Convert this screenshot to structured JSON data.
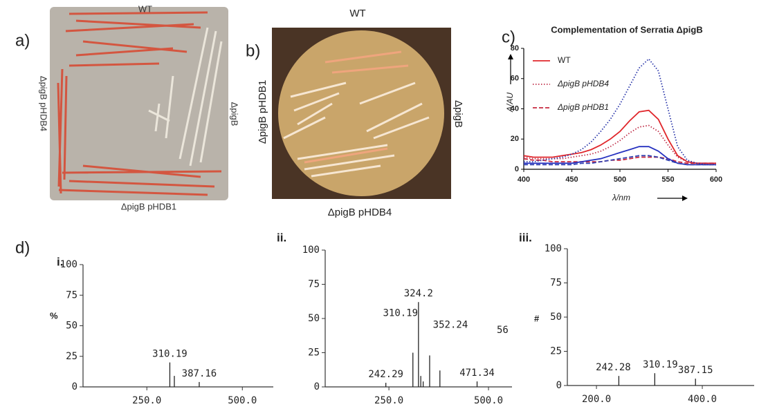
{
  "panels": {
    "a": {
      "label": "a)",
      "top": "WT",
      "right": "ΔpigB",
      "left": "ΔpigB pHDB4",
      "bottom": "ΔpigB pHDB1"
    },
    "b": {
      "label": "b)",
      "top": "WT",
      "right": "ΔpigB",
      "left": "ΔpigB pHDB1",
      "bottom": "ΔpigB pHDB4"
    },
    "c": {
      "label": "c)"
    },
    "d": {
      "label": "d)"
    }
  },
  "chart_data": [
    {
      "type": "line",
      "title": "Complementation of Serratia ΔpigB",
      "x_label": "λ/nm",
      "y_label": "A/AU",
      "x": [
        400,
        410,
        420,
        430,
        440,
        450,
        460,
        470,
        480,
        490,
        500,
        510,
        520,
        530,
        540,
        550,
        560,
        570,
        580,
        590,
        600
      ],
      "xlim": [
        400,
        600
      ],
      "xticks": [
        400,
        450,
        500,
        550,
        600
      ],
      "ylim": [
        0,
        80
      ],
      "yticks": [
        0,
        20,
        40,
        60,
        80
      ],
      "legend": "upper left",
      "series": [
        {
          "name": "WT",
          "color": "#e0262b",
          "dash": "solid",
          "values": [
            9,
            8,
            8,
            8,
            9,
            10,
            11,
            13,
            16,
            20,
            25,
            32,
            38,
            39,
            33,
            20,
            9,
            5,
            4,
            4,
            4
          ]
        },
        {
          "name": "ΔpigB pHDB4",
          "color": "#c0304a",
          "dash": "dotted",
          "values": [
            8,
            7,
            7,
            7,
            7,
            8,
            9,
            10,
            12,
            15,
            19,
            24,
            28,
            29,
            25,
            16,
            8,
            5,
            4,
            4,
            3
          ]
        },
        {
          "name": "ΔpigB pHDB1",
          "color": "#c8283e",
          "dash": "dashed",
          "values": [
            7,
            6,
            6,
            5,
            5,
            5,
            5,
            5,
            5,
            6,
            6,
            7,
            8,
            8,
            8,
            7,
            5,
            4,
            4,
            4,
            4
          ]
        },
        {
          "color": "#2632a8",
          "dash": "dotted",
          "values": [
            5,
            5,
            6,
            7,
            8,
            10,
            13,
            18,
            25,
            33,
            43,
            55,
            67,
            73,
            65,
            40,
            15,
            6,
            4,
            3,
            3
          ]
        },
        {
          "color": "#2632c0",
          "dash": "solid",
          "values": [
            4,
            4,
            4,
            4,
            4,
            4,
            5,
            6,
            7,
            9,
            11,
            13,
            15,
            15,
            12,
            7,
            4,
            3,
            3,
            3,
            3
          ]
        },
        {
          "color": "#3040b0",
          "dash": "dashed",
          "values": [
            3,
            3,
            3,
            3,
            3,
            3,
            4,
            4,
            5,
            6,
            7,
            8,
            9,
            9,
            8,
            6,
            4,
            3,
            3,
            3,
            3
          ]
        }
      ]
    },
    {
      "type": "stick",
      "label": "i.",
      "y_label": "%",
      "xlim": [
        83,
        581
      ],
      "xticks": [
        {
          "value": 250,
          "label": "250.0"
        },
        {
          "value": 500,
          "label": "500.0"
        }
      ],
      "ylim": [
        0,
        100
      ],
      "yticks": [
        0,
        25,
        50,
        75,
        100
      ],
      "series": [
        {
          "color": "#222222",
          "labeled": true,
          "x": [
            310.19,
            387.16
          ],
          "values": [
            20,
            4
          ]
        },
        {
          "color": "#222222",
          "x": [
            322
          ],
          "values": [
            9
          ]
        }
      ]
    },
    {
      "type": "stick",
      "label": "ii.",
      "annotation": "56",
      "xlim": [
        90,
        559
      ],
      "xticks": [
        {
          "value": 250,
          "label": "250.0"
        },
        {
          "value": 500,
          "label": "500.0"
        }
      ],
      "ylim": [
        0,
        100
      ],
      "yticks": [
        0,
        25,
        50,
        75,
        100
      ],
      "series": [
        {
          "color": "#222222",
          "labeled": true,
          "x": [
            242.29,
            310.19,
            324.2,
            352.24,
            471.34
          ],
          "values": [
            3,
            25,
            62,
            23,
            4
          ]
        },
        {
          "color": "#222222",
          "x": [
            330,
            336,
            378
          ],
          "values": [
            8,
            4,
            12
          ]
        }
      ]
    },
    {
      "type": "stick",
      "label": "iii.",
      "y_label": "#",
      "xlim": [
        145,
        498
      ],
      "xticks": [
        {
          "value": 200,
          "label": "200.0"
        },
        {
          "value": 400,
          "label": "400.0"
        }
      ],
      "ylim": [
        0,
        100
      ],
      "yticks": [
        0,
        25,
        50,
        75,
        100
      ],
      "series": [
        {
          "color": "#222222",
          "labeled": true,
          "x": [
            242.28,
            310.19,
            387.15
          ],
          "values": [
            7,
            9,
            5
          ]
        }
      ]
    }
  ]
}
